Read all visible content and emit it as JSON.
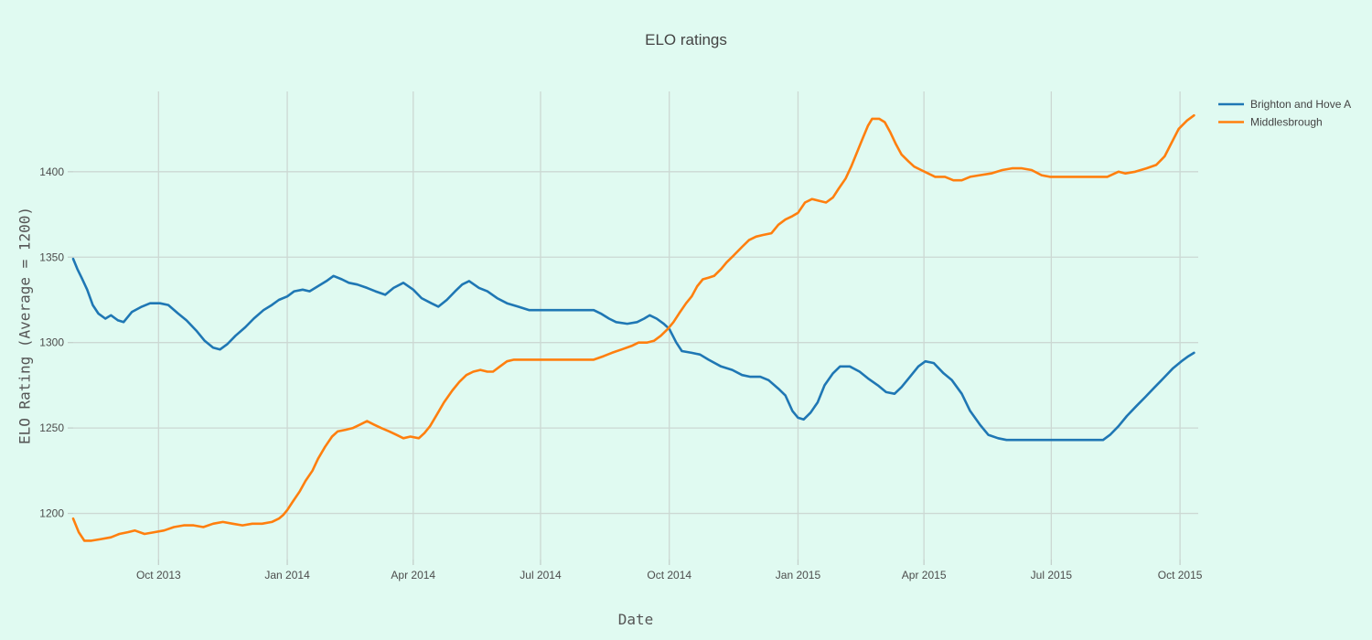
{
  "chart_data": {
    "type": "line",
    "title": "ELO ratings",
    "xlabel": "Date",
    "ylabel": "ELO Rating (Average = 1200)",
    "x_range": [
      "2013-08-01",
      "2015-10-14"
    ],
    "y_range": [
      1173,
      1447
    ],
    "grid": true,
    "legend_position": "top-right-outside",
    "x_ticks": [
      {
        "label": "Oct 2013",
        "date": "2013-10-01"
      },
      {
        "label": "Jan 2014",
        "date": "2014-01-01"
      },
      {
        "label": "Apr 2014",
        "date": "2014-04-01"
      },
      {
        "label": "Jul 2014",
        "date": "2014-07-01"
      },
      {
        "label": "Oct 2014",
        "date": "2014-10-01"
      },
      {
        "label": "Jan 2015",
        "date": "2015-01-01"
      },
      {
        "label": "Apr 2015",
        "date": "2015-04-01"
      },
      {
        "label": "Jul 2015",
        "date": "2015-07-01"
      },
      {
        "label": "Oct 2015",
        "date": "2015-10-01"
      }
    ],
    "y_ticks": [
      1200,
      1250,
      1300,
      1350,
      1400
    ],
    "colors": {
      "background": "#e0faf1",
      "grid": "#ccd8d3",
      "tick_mark": "#c3d0cb",
      "title_text": "#444444",
      "tick_text": "#4c4c4c",
      "axis_title_text": "#555555"
    },
    "series": [
      {
        "id": "brighton-and-hove-a",
        "name": "Brighton and Hove A",
        "color": "#1f77b4",
        "points": [
          [
            "2013-08-01",
            1349
          ],
          [
            "2013-08-04",
            1343
          ],
          [
            "2013-08-07",
            1338
          ],
          [
            "2013-08-11",
            1331
          ],
          [
            "2013-08-15",
            1322
          ],
          [
            "2013-08-19",
            1317
          ],
          [
            "2013-08-24",
            1314
          ],
          [
            "2013-08-28",
            1316
          ],
          [
            "2013-09-02",
            1313
          ],
          [
            "2013-09-06",
            1312
          ],
          [
            "2013-09-12",
            1318
          ],
          [
            "2013-09-19",
            1321
          ],
          [
            "2013-09-25",
            1323
          ],
          [
            "2013-10-02",
            1323
          ],
          [
            "2013-10-08",
            1322
          ],
          [
            "2013-10-15",
            1317
          ],
          [
            "2013-10-21",
            1313
          ],
          [
            "2013-10-28",
            1307
          ],
          [
            "2013-11-03",
            1301
          ],
          [
            "2013-11-09",
            1297
          ],
          [
            "2013-11-14",
            1296
          ],
          [
            "2013-11-19",
            1299
          ],
          [
            "2013-11-25",
            1304
          ],
          [
            "2013-12-02",
            1309
          ],
          [
            "2013-12-08",
            1314
          ],
          [
            "2013-12-15",
            1319
          ],
          [
            "2013-12-21",
            1322
          ],
          [
            "2013-12-26",
            1325
          ],
          [
            "2014-01-01",
            1327
          ],
          [
            "2014-01-06",
            1330
          ],
          [
            "2014-01-12",
            1331
          ],
          [
            "2014-01-17",
            1330
          ],
          [
            "2014-01-23",
            1333
          ],
          [
            "2014-01-29",
            1336
          ],
          [
            "2014-02-03",
            1339
          ],
          [
            "2014-02-09",
            1337
          ],
          [
            "2014-02-14",
            1335
          ],
          [
            "2014-02-20",
            1334
          ],
          [
            "2014-02-27",
            1332
          ],
          [
            "2014-03-05",
            1330
          ],
          [
            "2014-03-12",
            1328
          ],
          [
            "2014-03-18",
            1332
          ],
          [
            "2014-03-25",
            1335
          ],
          [
            "2014-04-01",
            1331
          ],
          [
            "2014-04-07",
            1326
          ],
          [
            "2014-04-14",
            1323
          ],
          [
            "2014-04-19",
            1321
          ],
          [
            "2014-04-25",
            1325
          ],
          [
            "2014-05-01",
            1330
          ],
          [
            "2014-05-06",
            1334
          ],
          [
            "2014-05-11",
            1336
          ],
          [
            "2014-05-18",
            1332
          ],
          [
            "2014-05-24",
            1330
          ],
          [
            "2014-05-31",
            1326
          ],
          [
            "2014-06-07",
            1323
          ],
          [
            "2014-06-15",
            1321
          ],
          [
            "2014-06-23",
            1319
          ],
          [
            "2014-08-08",
            1319
          ],
          [
            "2014-08-13",
            1317
          ],
          [
            "2014-08-19",
            1314
          ],
          [
            "2014-08-24",
            1312
          ],
          [
            "2014-09-01",
            1311
          ],
          [
            "2014-09-08",
            1312
          ],
          [
            "2014-09-13",
            1314
          ],
          [
            "2014-09-17",
            1316
          ],
          [
            "2014-09-22",
            1314
          ],
          [
            "2014-09-27",
            1311
          ],
          [
            "2014-10-01",
            1308
          ],
          [
            "2014-10-06",
            1300
          ],
          [
            "2014-10-10",
            1295
          ],
          [
            "2014-10-17",
            1294
          ],
          [
            "2014-10-23",
            1293
          ],
          [
            "2014-10-29",
            1290
          ],
          [
            "2014-11-07",
            1286
          ],
          [
            "2014-11-15",
            1284
          ],
          [
            "2014-11-22",
            1281
          ],
          [
            "2014-11-28",
            1280
          ],
          [
            "2014-12-05",
            1280
          ],
          [
            "2014-12-11",
            1278
          ],
          [
            "2014-12-18",
            1273
          ],
          [
            "2014-12-23",
            1269
          ],
          [
            "2014-12-28",
            1260
          ],
          [
            "2015-01-01",
            1256
          ],
          [
            "2015-01-05",
            1255
          ],
          [
            "2015-01-10",
            1259
          ],
          [
            "2015-01-15",
            1265
          ],
          [
            "2015-01-20",
            1275
          ],
          [
            "2015-01-26",
            1282
          ],
          [
            "2015-01-31",
            1286
          ],
          [
            "2015-02-07",
            1286
          ],
          [
            "2015-02-14",
            1283
          ],
          [
            "2015-02-20",
            1279
          ],
          [
            "2015-02-27",
            1275
          ],
          [
            "2015-03-05",
            1271
          ],
          [
            "2015-03-11",
            1270
          ],
          [
            "2015-03-16",
            1274
          ],
          [
            "2015-03-22",
            1280
          ],
          [
            "2015-03-28",
            1286
          ],
          [
            "2015-04-02",
            1289
          ],
          [
            "2015-04-08",
            1288
          ],
          [
            "2015-04-15",
            1282
          ],
          [
            "2015-04-21",
            1278
          ],
          [
            "2015-04-28",
            1270
          ],
          [
            "2015-05-04",
            1260
          ],
          [
            "2015-05-11",
            1252
          ],
          [
            "2015-05-17",
            1246
          ],
          [
            "2015-05-24",
            1244
          ],
          [
            "2015-05-30",
            1243
          ],
          [
            "2015-08-07",
            1243
          ],
          [
            "2015-08-12",
            1246
          ],
          [
            "2015-08-18",
            1251
          ],
          [
            "2015-08-24",
            1257
          ],
          [
            "2015-08-31",
            1263
          ],
          [
            "2015-09-06",
            1268
          ],
          [
            "2015-09-13",
            1274
          ],
          [
            "2015-09-19",
            1279
          ],
          [
            "2015-09-26",
            1285
          ],
          [
            "2015-10-02",
            1289
          ],
          [
            "2015-10-07",
            1292
          ],
          [
            "2015-10-11",
            1294
          ]
        ]
      },
      {
        "id": "middlesbrough",
        "name": "Middlesbrough",
        "color": "#ff7f0e",
        "points": [
          [
            "2013-08-01",
            1197
          ],
          [
            "2013-08-05",
            1189
          ],
          [
            "2013-08-09",
            1184
          ],
          [
            "2013-08-14",
            1184
          ],
          [
            "2013-08-21",
            1185
          ],
          [
            "2013-08-28",
            1186
          ],
          [
            "2013-09-03",
            1188
          ],
          [
            "2013-09-09",
            1189
          ],
          [
            "2013-09-14",
            1190
          ],
          [
            "2013-09-21",
            1188
          ],
          [
            "2013-09-28",
            1189
          ],
          [
            "2013-10-05",
            1190
          ],
          [
            "2013-10-12",
            1192
          ],
          [
            "2013-10-19",
            1193
          ],
          [
            "2013-10-26",
            1193
          ],
          [
            "2013-11-02",
            1192
          ],
          [
            "2013-11-09",
            1194
          ],
          [
            "2013-11-16",
            1195
          ],
          [
            "2013-11-23",
            1194
          ],
          [
            "2013-11-30",
            1193
          ],
          [
            "2013-12-07",
            1194
          ],
          [
            "2013-12-14",
            1194
          ],
          [
            "2013-12-21",
            1195
          ],
          [
            "2013-12-26",
            1197
          ],
          [
            "2013-12-29",
            1199
          ],
          [
            "2014-01-01",
            1202
          ],
          [
            "2014-01-05",
            1207
          ],
          [
            "2014-01-10",
            1213
          ],
          [
            "2014-01-14",
            1219
          ],
          [
            "2014-01-19",
            1225
          ],
          [
            "2014-01-23",
            1232
          ],
          [
            "2014-01-28",
            1239
          ],
          [
            "2014-02-02",
            1245
          ],
          [
            "2014-02-06",
            1248
          ],
          [
            "2014-02-12",
            1249
          ],
          [
            "2014-02-17",
            1250
          ],
          [
            "2014-02-22",
            1252
          ],
          [
            "2014-02-27",
            1254
          ],
          [
            "2014-03-04",
            1252
          ],
          [
            "2014-03-09",
            1250
          ],
          [
            "2014-03-15",
            1248
          ],
          [
            "2014-03-20",
            1246
          ],
          [
            "2014-03-25",
            1244
          ],
          [
            "2014-03-30",
            1245
          ],
          [
            "2014-04-05",
            1244
          ],
          [
            "2014-04-09",
            1247
          ],
          [
            "2014-04-13",
            1251
          ],
          [
            "2014-04-18",
            1258
          ],
          [
            "2014-04-23",
            1265
          ],
          [
            "2014-04-29",
            1272
          ],
          [
            "2014-05-04",
            1277
          ],
          [
            "2014-05-09",
            1281
          ],
          [
            "2014-05-14",
            1283
          ],
          [
            "2014-05-19",
            1284
          ],
          [
            "2014-05-24",
            1283
          ],
          [
            "2014-05-28",
            1283
          ],
          [
            "2014-06-02",
            1286
          ],
          [
            "2014-06-07",
            1289
          ],
          [
            "2014-06-12",
            1290
          ],
          [
            "2014-08-08",
            1290
          ],
          [
            "2014-08-15",
            1292
          ],
          [
            "2014-08-21",
            1294
          ],
          [
            "2014-08-28",
            1296
          ],
          [
            "2014-09-04",
            1298
          ],
          [
            "2014-09-09",
            1300
          ],
          [
            "2014-09-15",
            1300
          ],
          [
            "2014-09-20",
            1301
          ],
          [
            "2014-09-25",
            1304
          ],
          [
            "2014-09-30",
            1308
          ],
          [
            "2014-10-04",
            1312
          ],
          [
            "2014-10-08",
            1317
          ],
          [
            "2014-10-13",
            1323
          ],
          [
            "2014-10-17",
            1327
          ],
          [
            "2014-10-21",
            1333
          ],
          [
            "2014-10-25",
            1337
          ],
          [
            "2014-10-29",
            1338
          ],
          [
            "2014-11-02",
            1339
          ],
          [
            "2014-11-07",
            1343
          ],
          [
            "2014-11-11",
            1347
          ],
          [
            "2014-11-16",
            1351
          ],
          [
            "2014-11-22",
            1356
          ],
          [
            "2014-11-27",
            1360
          ],
          [
            "2014-12-02",
            1362
          ],
          [
            "2014-12-07",
            1363
          ],
          [
            "2014-12-13",
            1364
          ],
          [
            "2014-12-18",
            1369
          ],
          [
            "2014-12-23",
            1372
          ],
          [
            "2014-12-28",
            1374
          ],
          [
            "2015-01-01",
            1376
          ],
          [
            "2015-01-06",
            1382
          ],
          [
            "2015-01-11",
            1384
          ],
          [
            "2015-01-16",
            1383
          ],
          [
            "2015-01-21",
            1382
          ],
          [
            "2015-01-26",
            1385
          ],
          [
            "2015-01-30",
            1390
          ],
          [
            "2015-02-04",
            1396
          ],
          [
            "2015-02-08",
            1403
          ],
          [
            "2015-02-12",
            1411
          ],
          [
            "2015-02-16",
            1419
          ],
          [
            "2015-02-20",
            1427
          ],
          [
            "2015-02-23",
            1431
          ],
          [
            "2015-02-28",
            1431
          ],
          [
            "2015-03-04",
            1429
          ],
          [
            "2015-03-08",
            1423
          ],
          [
            "2015-03-12",
            1416
          ],
          [
            "2015-03-16",
            1410
          ],
          [
            "2015-03-21",
            1406
          ],
          [
            "2015-03-25",
            1403
          ],
          [
            "2015-03-30",
            1401
          ],
          [
            "2015-04-04",
            1399
          ],
          [
            "2015-04-09",
            1397
          ],
          [
            "2015-04-16",
            1397
          ],
          [
            "2015-04-22",
            1395
          ],
          [
            "2015-04-28",
            1395
          ],
          [
            "2015-05-04",
            1397
          ],
          [
            "2015-05-11",
            1398
          ],
          [
            "2015-05-19",
            1399
          ],
          [
            "2015-05-27",
            1401
          ],
          [
            "2015-06-03",
            1402
          ],
          [
            "2015-06-10",
            1402
          ],
          [
            "2015-06-17",
            1401
          ],
          [
            "2015-06-24",
            1398
          ],
          [
            "2015-06-30",
            1397
          ],
          [
            "2015-08-10",
            1397
          ],
          [
            "2015-08-18",
            1400
          ],
          [
            "2015-08-23",
            1399
          ],
          [
            "2015-08-30",
            1400
          ],
          [
            "2015-09-07",
            1402
          ],
          [
            "2015-09-14",
            1404
          ],
          [
            "2015-09-20",
            1409
          ],
          [
            "2015-09-25",
            1417
          ],
          [
            "2015-09-30",
            1425
          ],
          [
            "2015-10-06",
            1430
          ],
          [
            "2015-10-11",
            1433
          ]
        ]
      }
    ]
  }
}
